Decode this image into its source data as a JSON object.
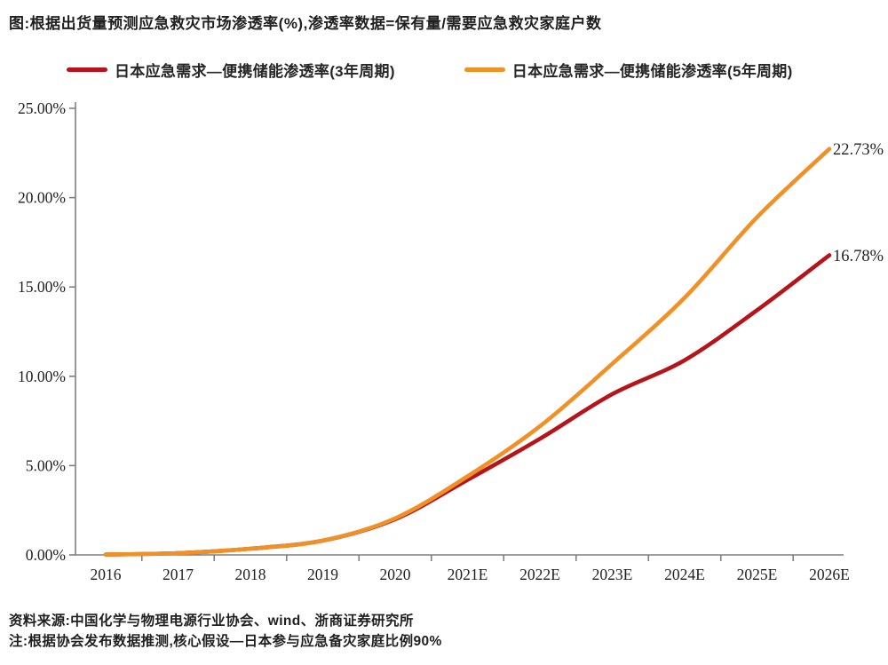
{
  "header": {
    "title": "图:根据出货量预测应急救灾市场渗透率(%),渗透率数据=保有量/需要应急救灾家庭户数"
  },
  "legend": {
    "items": [
      {
        "label": "日本应急需求—便携储能渗透率(3年周期)",
        "color": "#b5141b"
      },
      {
        "label": "日本应急需求—便携储能渗透率(5年周期)",
        "color": "#f09128"
      }
    ]
  },
  "chart_data": {
    "type": "line",
    "title": "根据出货量预测应急救灾市场渗透率(%)",
    "categories": [
      "2016",
      "2017",
      "2018",
      "2019",
      "2020",
      "2021E",
      "2022E",
      "2023E",
      "2024E",
      "2025E",
      "2026E"
    ],
    "series": [
      {
        "name": "日本应急需求—便携储能渗透率(3年周期)",
        "color": "#b5141b",
        "values": [
          0.02,
          0.1,
          0.35,
          0.8,
          2.0,
          4.2,
          6.5,
          9.0,
          10.9,
          13.7,
          16.78
        ],
        "end_label": "16.78%"
      },
      {
        "name": "日本应急需求—便携储能渗透率(5年周期)",
        "color": "#f09128",
        "values": [
          0.02,
          0.1,
          0.35,
          0.8,
          2.05,
          4.4,
          7.2,
          10.7,
          14.4,
          18.9,
          22.73
        ],
        "end_label": "22.73%"
      }
    ],
    "xlabel": "",
    "ylabel": "",
    "ylim": [
      0,
      25
    ],
    "ytick_step": 5,
    "ytick_labels": [
      "0.00%",
      "5.00%",
      "10.00%",
      "15.00%",
      "20.00%",
      "25.00%"
    ],
    "grid": false,
    "legend_position": "top",
    "axis_color": "#7f7f7f",
    "label_color": "#1f1f1f"
  },
  "footer": {
    "source": "资料来源:中国化学与物理电源行业协会、wind、浙商证券研究所",
    "note": "注:根据协会发布数据推测,核心假设—日本参与应急备灾家庭比例90%"
  }
}
